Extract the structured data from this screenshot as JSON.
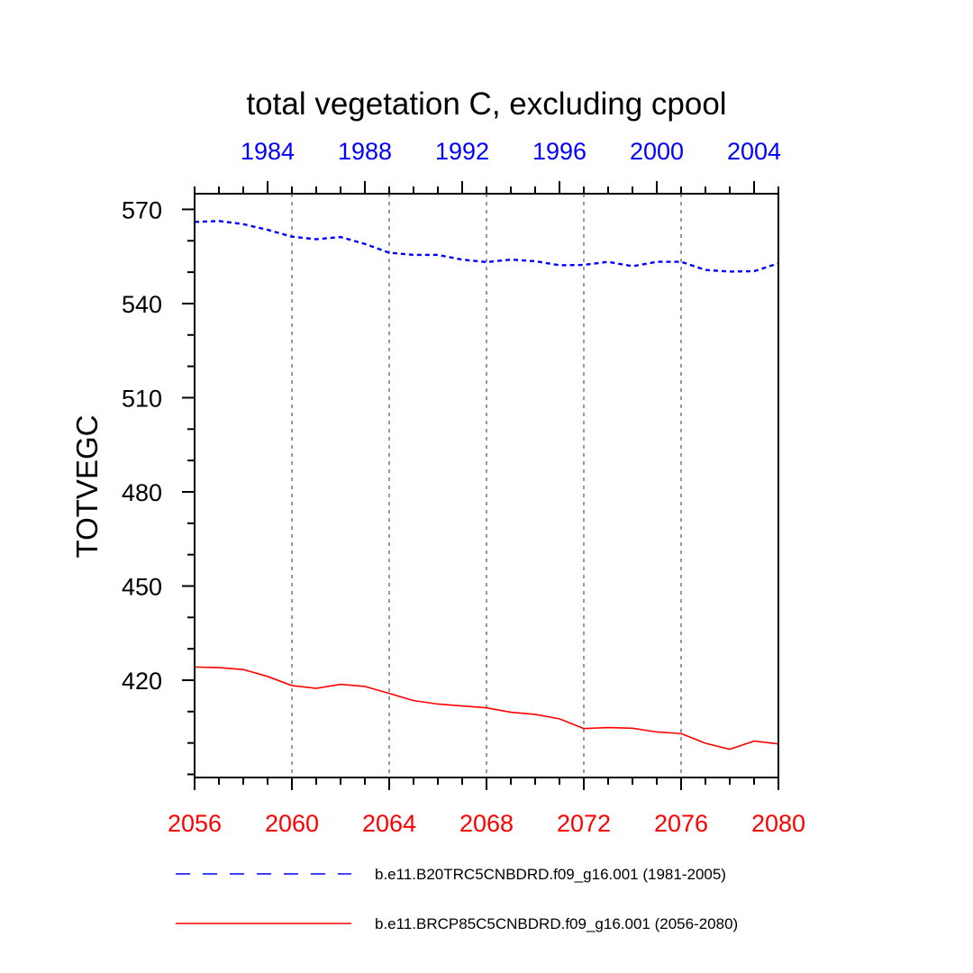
{
  "chart_data": {
    "type": "line",
    "title": "total vegetation C, excluding cpool",
    "ylabel": "TOTVEGC",
    "ylim": [
      389,
      575
    ],
    "yticks": [
      420,
      450,
      480,
      510,
      540,
      570
    ],
    "bottom_axis": {
      "color": "#ff0000",
      "range": [
        2056,
        2080
      ],
      "ticks": [
        2056,
        2060,
        2064,
        2068,
        2072,
        2076,
        2080
      ]
    },
    "top_axis": {
      "color": "#0000ff",
      "range": [
        1981,
        2005
      ],
      "ticks": [
        1984,
        1988,
        1992,
        1996,
        2000,
        2004
      ]
    },
    "series": [
      {
        "name": "b.e11.B20TRC5CNBDRD.f09_g16.001 (1981-2005)",
        "axis": "top",
        "color": "#0000ff",
        "dash": "dashed",
        "x": [
          1981,
          1982,
          1983,
          1984,
          1985,
          1986,
          1987,
          1988,
          1989,
          1990,
          1991,
          1992,
          1993,
          1994,
          1995,
          1996,
          1997,
          1998,
          1999,
          2000,
          2001,
          2002,
          2003,
          2004,
          2005
        ],
        "values": [
          566,
          566.3,
          565.3,
          563.5,
          561.3,
          560.5,
          561.2,
          559,
          556.2,
          555.5,
          555.5,
          554,
          553.2,
          554,
          553.5,
          552.2,
          552.3,
          553.3,
          551.9,
          553.3,
          553.3,
          550.7,
          550.2,
          550.3,
          552.8
        ]
      },
      {
        "name": "b.e11.BRCP85C5CNBDRD.f09_g16.001 (2056-2080)",
        "axis": "bottom",
        "color": "#ff0000",
        "dash": "solid",
        "x": [
          2056,
          2057,
          2058,
          2059,
          2060,
          2061,
          2062,
          2063,
          2064,
          2065,
          2066,
          2067,
          2068,
          2069,
          2070,
          2071,
          2072,
          2073,
          2074,
          2075,
          2076,
          2077,
          2078,
          2079,
          2080
        ],
        "values": [
          424.2,
          424,
          423.4,
          421.2,
          418.3,
          417.4,
          418.7,
          418,
          415.8,
          413.5,
          412.4,
          411.8,
          411.2,
          409.8,
          409.1,
          407.7,
          404.6,
          404.9,
          404.7,
          403.5,
          403,
          399.9,
          398,
          400.6,
          399.7
        ]
      }
    ]
  }
}
